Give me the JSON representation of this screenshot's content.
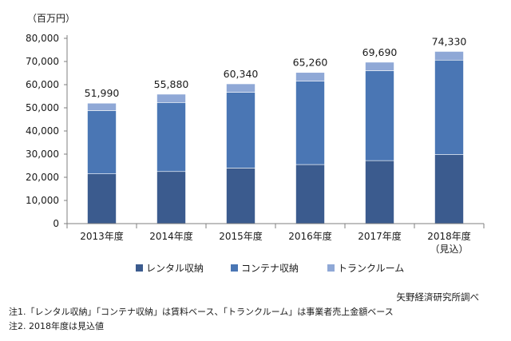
{
  "chart_data": {
    "type": "bar",
    "stacked": true,
    "unit_label": "（百万円）",
    "categories": [
      "2013年度",
      "2014年度",
      "2015年度",
      "2016年度",
      "2017年度",
      "2018年度"
    ],
    "category_sublabels": [
      "",
      "",
      "",
      "",
      "",
      "（見込）"
    ],
    "series": [
      {
        "name": "レンタル収納",
        "values": [
          21500,
          22500,
          24000,
          25500,
          27200,
          29800
        ],
        "color": "#3b5b8e"
      },
      {
        "name": "コンテナ収納",
        "values": [
          27300,
          29800,
          32700,
          36000,
          38800,
          40800
        ],
        "color": "#4a76b4"
      },
      {
        "name": "トランクルーム",
        "values": [
          3190,
          3580,
          3640,
          3760,
          3690,
          3730
        ],
        "color": "#8fa8d6"
      }
    ],
    "totals": [
      51990,
      55880,
      60340,
      65260,
      69690,
      74330
    ],
    "total_labels": [
      "51,990",
      "55,880",
      "60,340",
      "65,260",
      "69,690",
      "74,330"
    ],
    "ylim": [
      0,
      80000
    ],
    "yticks": [
      0,
      10000,
      20000,
      30000,
      40000,
      50000,
      60000,
      70000,
      80000
    ],
    "ytick_labels": [
      "0",
      "10,000",
      "20,000",
      "30,000",
      "40,000",
      "50,000",
      "60,000",
      "70,000",
      "80,000"
    ],
    "xlabel": "",
    "ylabel": "",
    "legend_position": "bottom",
    "grid": false
  },
  "source": "矢野経済研究所調べ",
  "notes": [
    "注1.「レンタル収納」「コンテナ収納」は賃料ベース、「トランクルーム」は事業者売上金額ベース",
    "注2. 2018年度は見込値"
  ],
  "axis_color": "#7f7f7f"
}
